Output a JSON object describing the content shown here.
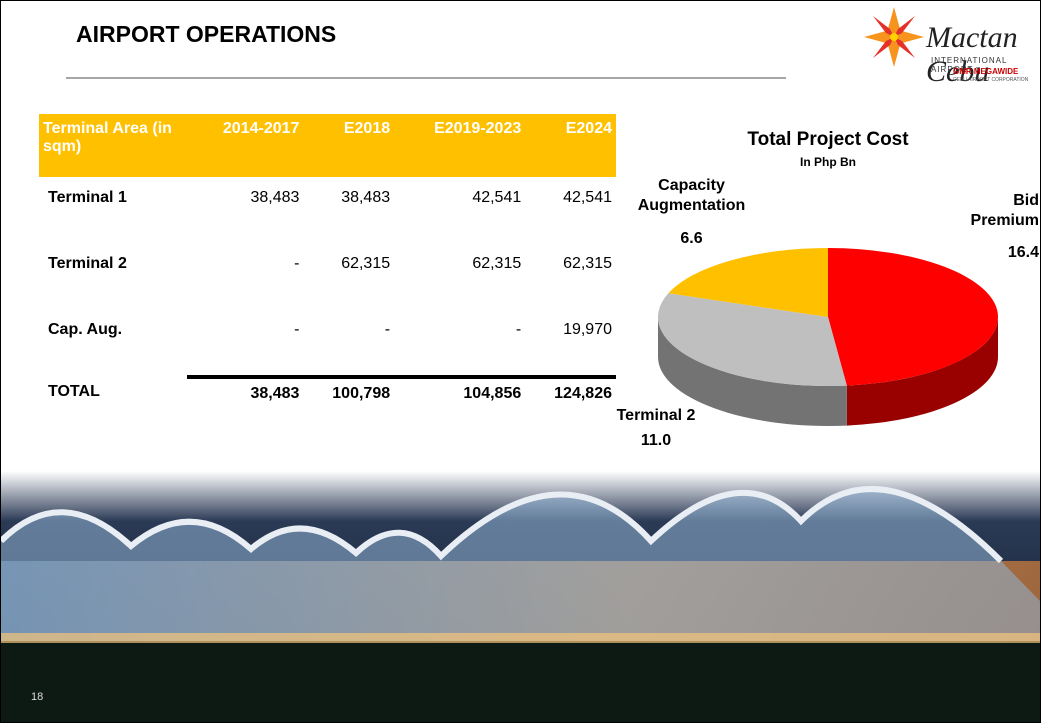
{
  "header": {
    "title": "AIRPORT OPERATIONS"
  },
  "logo": {
    "name": "Mactan Cebu",
    "subtitle": "INTERNATIONAL AIRPORT",
    "partner": "GMR MEGAWIDE",
    "partner_subtitle": "CEBU AIRPORT CORPORATION"
  },
  "table": {
    "columns": [
      "Terminal Area (in sqm)",
      "2014-2017",
      "E2018",
      "E2019-2023",
      "E2024"
    ],
    "rows": [
      [
        "Terminal 1",
        "38,483",
        "38,483",
        "42,541",
        "42,541"
      ],
      [
        "Terminal 2",
        "-",
        "62,315",
        "62,315",
        "62,315"
      ],
      [
        "Cap. Aug.",
        "-",
        "-",
        "-",
        "19,970"
      ],
      [
        "TOTAL",
        "38,483",
        "100,798",
        "104,856",
        "124,826"
      ]
    ]
  },
  "chart_data": {
    "type": "pie",
    "title": "Total Project Cost",
    "subtitle": "In Php Bn",
    "categories": [
      "Bid Premium",
      "Terminal 2",
      "Capacity Augmentation"
    ],
    "values": [
      16.4,
      11,
      6.6
    ],
    "value_labels": [
      "16.4",
      "11.0",
      "6.6"
    ],
    "colors": [
      "#ff0000",
      "#bfbfbf",
      "#ffc000"
    ]
  },
  "page_number": "18"
}
